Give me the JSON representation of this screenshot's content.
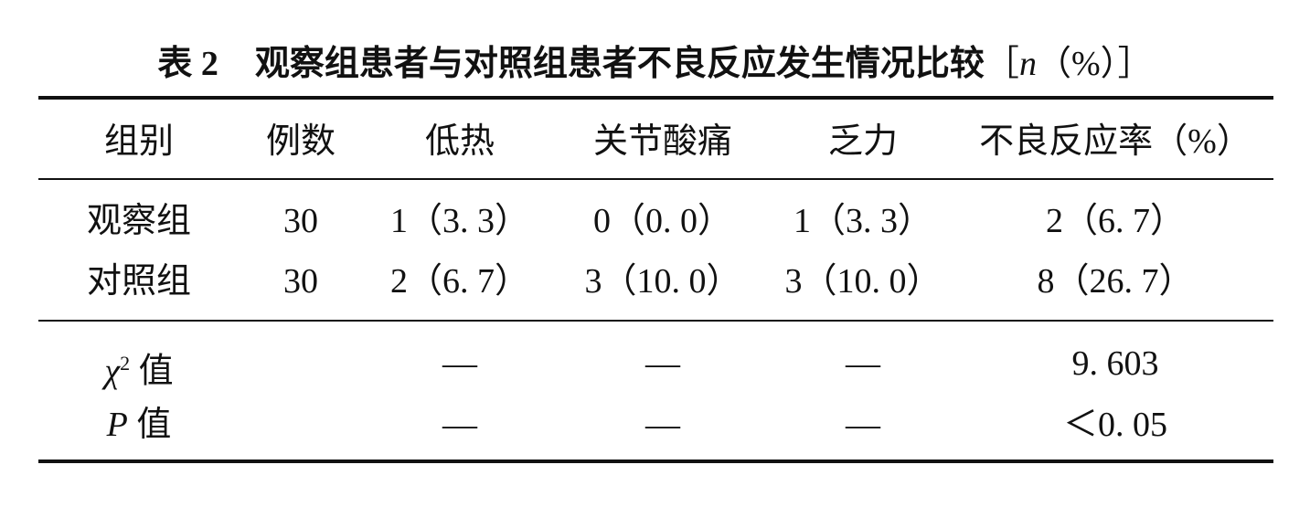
{
  "title": {
    "number": "表 2",
    "caption": "观察组患者与对照组患者不良反应发生情况比较",
    "unit_open": "［",
    "unit_n": "n",
    "unit_rest": "（%）］"
  },
  "headers": [
    "组别",
    "例数",
    "低热",
    "关节酸痛",
    "乏力",
    "不良反应率（%）"
  ],
  "rows": [
    [
      "观察组",
      "30",
      "1（3. 3）",
      "0（0. 0）",
      "1（3. 3）",
      "2（6. 7）"
    ],
    [
      "对照组",
      "30",
      "2（6. 7）",
      "3（10. 0）",
      "3（10. 0）",
      "8（26. 7）"
    ]
  ],
  "stats": {
    "chi": {
      "symbol": "χ",
      "sup": "2",
      "label": " 值",
      "values": [
        "",
        "—",
        "—",
        "—",
        "9. 603"
      ]
    },
    "p": {
      "symbol": "P",
      "label": " 值",
      "values": [
        "",
        "—",
        "—",
        "—",
        "＜0. 05"
      ]
    }
  }
}
